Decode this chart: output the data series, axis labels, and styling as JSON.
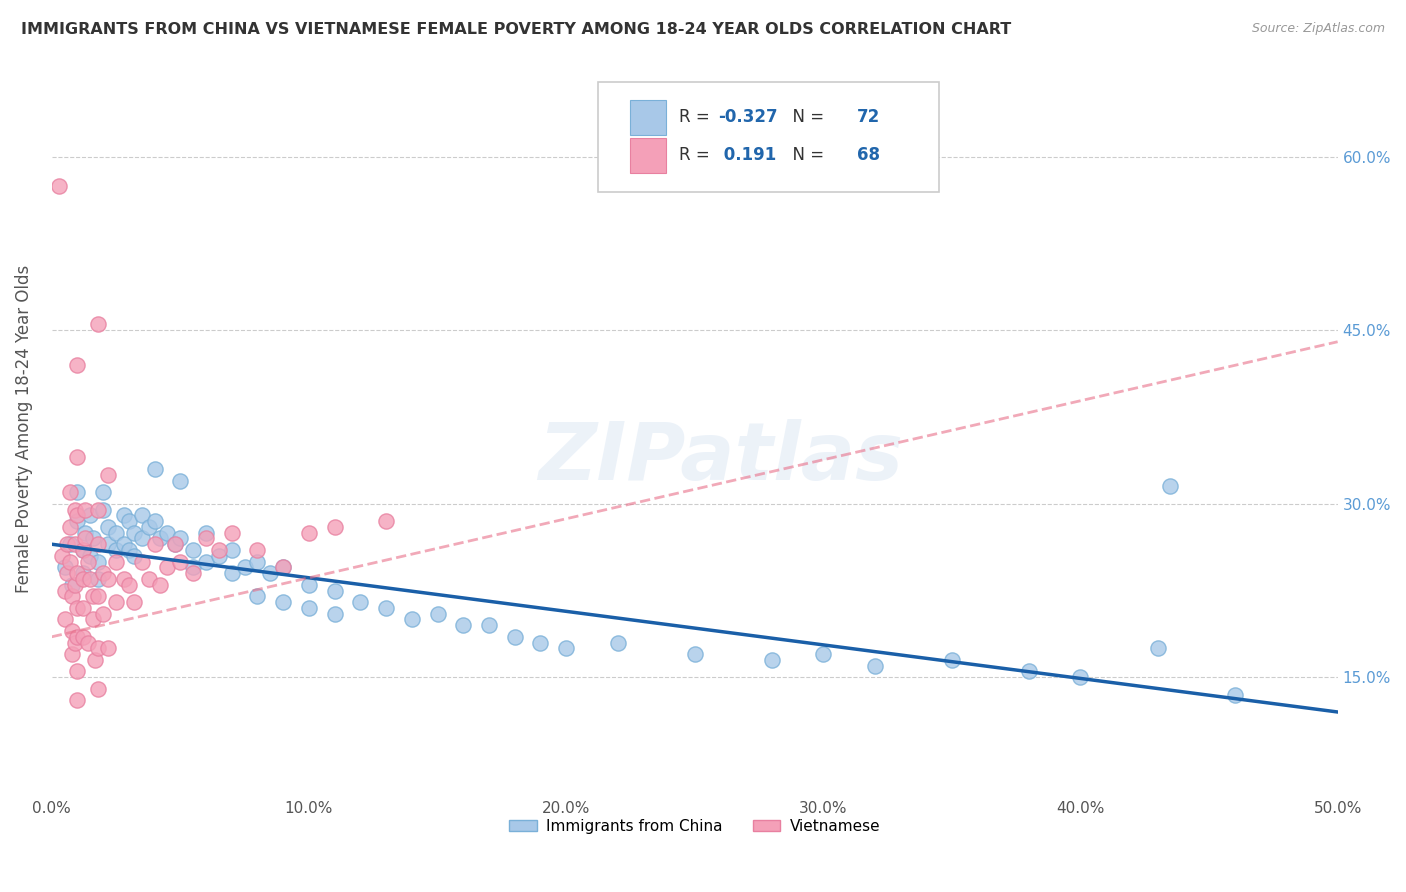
{
  "title": "IMMIGRANTS FROM CHINA VS VIETNAMESE FEMALE POVERTY AMONG 18-24 YEAR OLDS CORRELATION CHART",
  "source": "Source: ZipAtlas.com",
  "ylabel": "Female Poverty Among 18-24 Year Olds",
  "xlim": [
    0.0,
    0.5
  ],
  "ylim": [
    0.05,
    0.68
  ],
  "xtick_labels": [
    "0.0%",
    "10.0%",
    "20.0%",
    "30.0%",
    "40.0%",
    "50.0%"
  ],
  "xtick_vals": [
    0.0,
    0.1,
    0.2,
    0.3,
    0.4,
    0.5
  ],
  "ytick_labels": [
    "15.0%",
    "30.0%",
    "45.0%",
    "60.0%"
  ],
  "ytick_vals": [
    0.15,
    0.3,
    0.45,
    0.6
  ],
  "legend_blue_label": "Immigrants from China",
  "legend_pink_label": "Vietnamese",
  "R_blue": -0.327,
  "N_blue": 72,
  "R_pink": 0.191,
  "N_pink": 68,
  "blue_color": "#a8c8e8",
  "pink_color": "#f4a0b8",
  "blue_line_color": "#1a5fa8",
  "pink_line_color": "#e8708a",
  "watermark": "ZIPatlas",
  "blue_scatter": [
    [
      0.005,
      0.245
    ],
    [
      0.007,
      0.265
    ],
    [
      0.008,
      0.23
    ],
    [
      0.01,
      0.31
    ],
    [
      0.01,
      0.285
    ],
    [
      0.012,
      0.26
    ],
    [
      0.012,
      0.24
    ],
    [
      0.013,
      0.275
    ],
    [
      0.015,
      0.29
    ],
    [
      0.015,
      0.255
    ],
    [
      0.016,
      0.27
    ],
    [
      0.018,
      0.25
    ],
    [
      0.018,
      0.235
    ],
    [
      0.02,
      0.295
    ],
    [
      0.02,
      0.31
    ],
    [
      0.022,
      0.28
    ],
    [
      0.022,
      0.265
    ],
    [
      0.025,
      0.275
    ],
    [
      0.025,
      0.26
    ],
    [
      0.028,
      0.29
    ],
    [
      0.028,
      0.265
    ],
    [
      0.03,
      0.285
    ],
    [
      0.03,
      0.26
    ],
    [
      0.032,
      0.275
    ],
    [
      0.032,
      0.255
    ],
    [
      0.035,
      0.29
    ],
    [
      0.035,
      0.27
    ],
    [
      0.038,
      0.28
    ],
    [
      0.04,
      0.33
    ],
    [
      0.04,
      0.285
    ],
    [
      0.042,
      0.27
    ],
    [
      0.045,
      0.275
    ],
    [
      0.048,
      0.265
    ],
    [
      0.05,
      0.32
    ],
    [
      0.05,
      0.27
    ],
    [
      0.055,
      0.26
    ],
    [
      0.055,
      0.245
    ],
    [
      0.06,
      0.275
    ],
    [
      0.06,
      0.25
    ],
    [
      0.065,
      0.255
    ],
    [
      0.07,
      0.26
    ],
    [
      0.07,
      0.24
    ],
    [
      0.075,
      0.245
    ],
    [
      0.08,
      0.25
    ],
    [
      0.08,
      0.22
    ],
    [
      0.085,
      0.24
    ],
    [
      0.09,
      0.245
    ],
    [
      0.09,
      0.215
    ],
    [
      0.1,
      0.23
    ],
    [
      0.1,
      0.21
    ],
    [
      0.11,
      0.225
    ],
    [
      0.11,
      0.205
    ],
    [
      0.12,
      0.215
    ],
    [
      0.13,
      0.21
    ],
    [
      0.14,
      0.2
    ],
    [
      0.15,
      0.205
    ],
    [
      0.16,
      0.195
    ],
    [
      0.17,
      0.195
    ],
    [
      0.18,
      0.185
    ],
    [
      0.19,
      0.18
    ],
    [
      0.2,
      0.175
    ],
    [
      0.22,
      0.18
    ],
    [
      0.25,
      0.17
    ],
    [
      0.28,
      0.165
    ],
    [
      0.3,
      0.17
    ],
    [
      0.32,
      0.16
    ],
    [
      0.35,
      0.165
    ],
    [
      0.38,
      0.155
    ],
    [
      0.4,
      0.15
    ],
    [
      0.43,
      0.175
    ],
    [
      0.435,
      0.315
    ],
    [
      0.46,
      0.135
    ]
  ],
  "pink_scatter": [
    [
      0.003,
      0.575
    ],
    [
      0.004,
      0.255
    ],
    [
      0.005,
      0.225
    ],
    [
      0.005,
      0.2
    ],
    [
      0.006,
      0.265
    ],
    [
      0.006,
      0.24
    ],
    [
      0.007,
      0.28
    ],
    [
      0.007,
      0.31
    ],
    [
      0.007,
      0.25
    ],
    [
      0.008,
      0.22
    ],
    [
      0.008,
      0.19
    ],
    [
      0.008,
      0.17
    ],
    [
      0.009,
      0.295
    ],
    [
      0.009,
      0.265
    ],
    [
      0.009,
      0.23
    ],
    [
      0.009,
      0.18
    ],
    [
      0.01,
      0.42
    ],
    [
      0.01,
      0.34
    ],
    [
      0.01,
      0.29
    ],
    [
      0.01,
      0.24
    ],
    [
      0.01,
      0.21
    ],
    [
      0.01,
      0.185
    ],
    [
      0.01,
      0.155
    ],
    [
      0.01,
      0.13
    ],
    [
      0.012,
      0.26
    ],
    [
      0.012,
      0.235
    ],
    [
      0.012,
      0.21
    ],
    [
      0.012,
      0.185
    ],
    [
      0.013,
      0.295
    ],
    [
      0.013,
      0.27
    ],
    [
      0.014,
      0.25
    ],
    [
      0.014,
      0.18
    ],
    [
      0.015,
      0.235
    ],
    [
      0.016,
      0.22
    ],
    [
      0.016,
      0.2
    ],
    [
      0.017,
      0.165
    ],
    [
      0.018,
      0.455
    ],
    [
      0.018,
      0.295
    ],
    [
      0.018,
      0.265
    ],
    [
      0.018,
      0.22
    ],
    [
      0.018,
      0.175
    ],
    [
      0.018,
      0.14
    ],
    [
      0.02,
      0.24
    ],
    [
      0.02,
      0.205
    ],
    [
      0.022,
      0.325
    ],
    [
      0.022,
      0.235
    ],
    [
      0.022,
      0.175
    ],
    [
      0.025,
      0.25
    ],
    [
      0.025,
      0.215
    ],
    [
      0.028,
      0.235
    ],
    [
      0.03,
      0.23
    ],
    [
      0.032,
      0.215
    ],
    [
      0.035,
      0.25
    ],
    [
      0.038,
      0.235
    ],
    [
      0.04,
      0.265
    ],
    [
      0.042,
      0.23
    ],
    [
      0.045,
      0.245
    ],
    [
      0.048,
      0.265
    ],
    [
      0.05,
      0.25
    ],
    [
      0.055,
      0.24
    ],
    [
      0.06,
      0.27
    ],
    [
      0.065,
      0.26
    ],
    [
      0.07,
      0.275
    ],
    [
      0.08,
      0.26
    ],
    [
      0.09,
      0.245
    ],
    [
      0.1,
      0.275
    ],
    [
      0.11,
      0.28
    ],
    [
      0.13,
      0.285
    ]
  ]
}
